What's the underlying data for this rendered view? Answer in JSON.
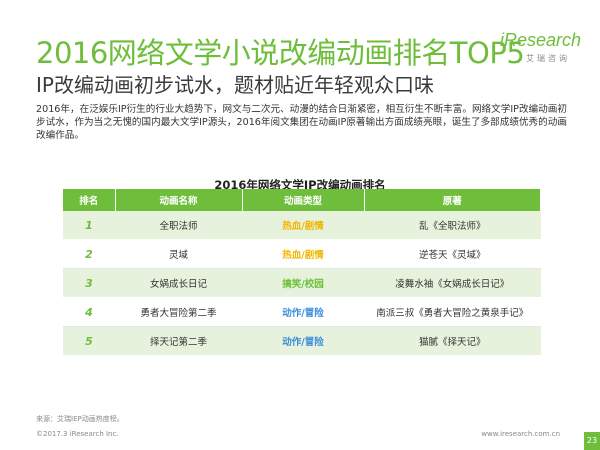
{
  "header": {
    "title": "2016网络文学小说改编动画排名TOP5",
    "subtitle": "IP改编动画初步试水，题材贴近年轻观众口味"
  },
  "logo": {
    "main": "iResearch",
    "sub": "艾瑞咨询"
  },
  "paragraph": "2016年，在泛娱乐IP衍生的行业大趋势下，网文与二次元、动漫的结合日渐紧密，相互衍生不断丰富。网络文学IP改编动画初步试水，作为当之无愧的国内最大文学IP源头，2016年阅文集团在动画IP原著输出方面成绩亮眼，诞生了多部成绩优秀的动画改编作品。",
  "table": {
    "title": "2016年网络文学IP改编动画排名",
    "headers": [
      "排名",
      "动画名称",
      "动画类型",
      "原著"
    ],
    "rows": [
      {
        "rank": "1",
        "name": "全职法师",
        "genre": "热血/剧情",
        "original": "乱《全职法师》"
      },
      {
        "rank": "2",
        "name": "灵域",
        "genre": "热血/剧情",
        "original": "逆苍天《灵域》"
      },
      {
        "rank": "3",
        "name": "女娲成长日记",
        "genre": "搞笑/校园",
        "original": "凌舞水袖《女娲成长日记》"
      },
      {
        "rank": "4",
        "name": "勇者大冒险第二季",
        "genre": "动作/冒险",
        "original": "南派三叔《勇者大冒险之黄泉手记》"
      },
      {
        "rank": "5",
        "name": "择天记第二季",
        "genre": "动作/冒险",
        "original": "猫腻《择天记》"
      }
    ]
  },
  "footer": {
    "source": "来源：艾瑞IEP动画热度榜。",
    "copyright": "©2017.3 iResearch Inc.",
    "site": "www.iresearch.com.cn",
    "page": "23"
  },
  "colors": {
    "accent": "#6ebe3b",
    "genre_hot": "#f2b600",
    "genre_action": "#3a8edc"
  }
}
